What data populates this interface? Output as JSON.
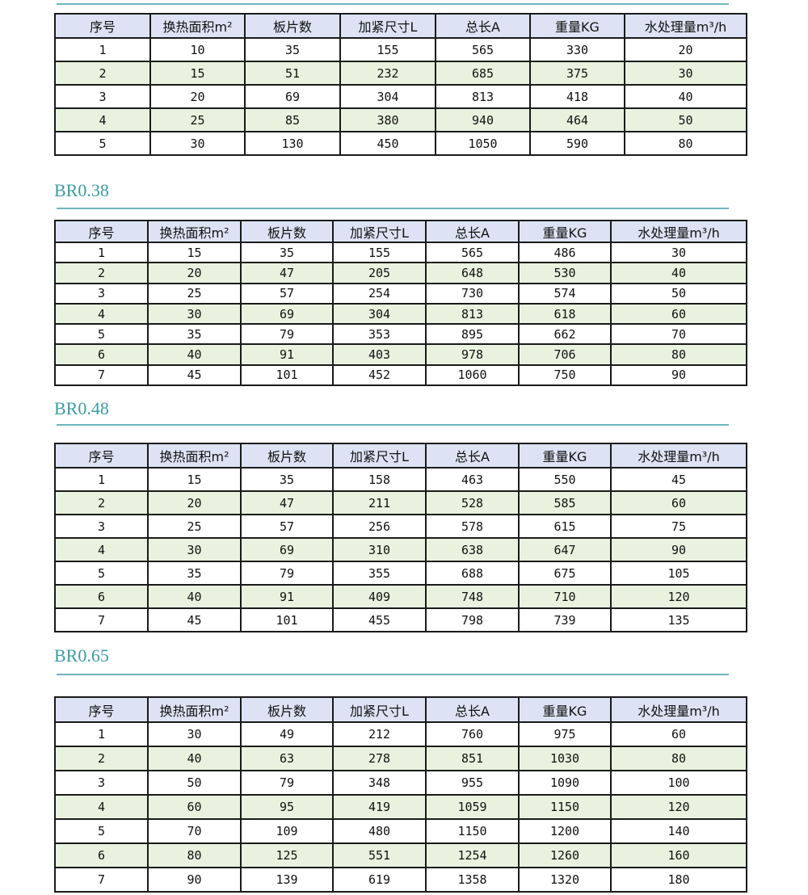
{
  "header_color": "#dde3f4",
  "alt_row_color": "#e9f2df",
  "title_color": "#3b9aa4",
  "columns": [
    "序号",
    "换热面积m²",
    "板片数",
    "加紧尺寸L",
    "总长A",
    "重量KG",
    "水处理量m³/h"
  ],
  "sections": [
    {
      "title": "",
      "rows": [
        [
          "1",
          "10",
          "35",
          "155",
          "565",
          "330",
          "20"
        ],
        [
          "2",
          "15",
          "51",
          "232",
          "685",
          "375",
          "30"
        ],
        [
          "3",
          "20",
          "69",
          "304",
          "813",
          "418",
          "40"
        ],
        [
          "4",
          "25",
          "85",
          "380",
          "940",
          "464",
          "50"
        ],
        [
          "5",
          "30",
          "130",
          "450",
          "1050",
          "590",
          "80"
        ]
      ]
    },
    {
      "title": "BR0.38",
      "rows": [
        [
          "1",
          "15",
          "35",
          "155",
          "565",
          "486",
          "30"
        ],
        [
          "2",
          "20",
          "47",
          "205",
          "648",
          "530",
          "40"
        ],
        [
          "3",
          "25",
          "57",
          "254",
          "730",
          "574",
          "50"
        ],
        [
          "4",
          "30",
          "69",
          "304",
          "813",
          "618",
          "60"
        ],
        [
          "5",
          "35",
          "79",
          "353",
          "895",
          "662",
          "70"
        ],
        [
          "6",
          "40",
          "91",
          "403",
          "978",
          "706",
          "80"
        ],
        [
          "7",
          "45",
          "101",
          "452",
          "1060",
          "750",
          "90"
        ]
      ]
    },
    {
      "title": "BR0.48",
      "rows": [
        [
          "1",
          "15",
          "35",
          "158",
          "463",
          "550",
          "45"
        ],
        [
          "2",
          "20",
          "47",
          "211",
          "528",
          "585",
          "60"
        ],
        [
          "3",
          "25",
          "57",
          "256",
          "578",
          "615",
          "75"
        ],
        [
          "4",
          "30",
          "69",
          "310",
          "638",
          "647",
          "90"
        ],
        [
          "5",
          "35",
          "79",
          "355",
          "688",
          "675",
          "105"
        ],
        [
          "6",
          "40",
          "91",
          "409",
          "748",
          "710",
          "120"
        ],
        [
          "7",
          "45",
          "101",
          "455",
          "798",
          "739",
          "135"
        ]
      ]
    },
    {
      "title": "BR0.65",
      "rows": [
        [
          "1",
          "30",
          "49",
          "212",
          "760",
          "975",
          "60"
        ],
        [
          "2",
          "40",
          "63",
          "278",
          "851",
          "1030",
          "80"
        ],
        [
          "3",
          "50",
          "79",
          "348",
          "955",
          "1090",
          "100"
        ],
        [
          "4",
          "60",
          "95",
          "419",
          "1059",
          "1150",
          "120"
        ],
        [
          "5",
          "70",
          "109",
          "480",
          "1150",
          "1200",
          "140"
        ],
        [
          "6",
          "80",
          "125",
          "551",
          "1254",
          "1260",
          "160"
        ],
        [
          "7",
          "90",
          "139",
          "619",
          "1358",
          "1320",
          "180"
        ]
      ]
    }
  ]
}
